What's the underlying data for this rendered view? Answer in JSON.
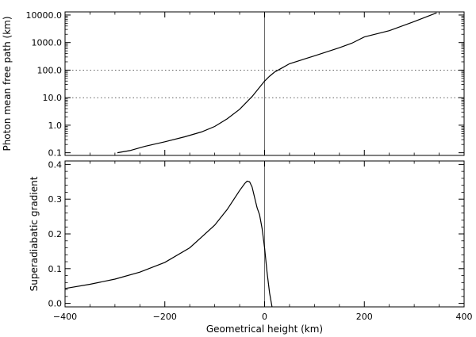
{
  "chart_data": [
    {
      "type": "line",
      "ylabel": "Photon mean free path (km)",
      "yscale": "log",
      "xlim": [
        -400,
        400
      ],
      "ylim": [
        0.08,
        13000
      ],
      "yticks": [
        0.1,
        1,
        10,
        100,
        1000,
        10000
      ],
      "ytick_labels": [
        "0.1",
        "1.0",
        "10.0",
        "100.0",
        "1000.0",
        "10000.0"
      ],
      "xticks": [
        -400,
        -200,
        0,
        200,
        400
      ],
      "hlines_dotted": [
        10,
        100
      ],
      "vline": 0,
      "x": [
        -295,
        -270,
        -240,
        -200,
        -160,
        -125,
        -100,
        -75,
        -50,
        -25,
        0,
        10,
        20,
        25,
        35,
        50,
        100,
        150,
        175,
        200,
        250,
        300,
        345
      ],
      "y": [
        0.1,
        0.12,
        0.17,
        0.25,
        0.38,
        0.58,
        0.9,
        1.7,
        3.8,
        11,
        40,
        60,
        85,
        95,
        120,
        170,
        330,
        650,
        950,
        1600,
        2700,
        5800,
        12000
      ]
    },
    {
      "type": "line",
      "ylabel": "Superadiabatic gradient",
      "xlabel": "Geometrical height (km)",
      "xlim": [
        -400,
        400
      ],
      "ylim": [
        -0.01,
        0.41
      ],
      "yticks": [
        0.0,
        0.1,
        0.2,
        0.3,
        0.4
      ],
      "ytick_labels": [
        "0.0",
        "0.1",
        "0.2",
        "0.3",
        "0.4"
      ],
      "xticks": [
        -400,
        -200,
        0,
        200,
        400
      ],
      "xtick_labels": [
        "−400",
        "−200",
        "0",
        "200",
        "400"
      ],
      "vline": 0,
      "x": [
        -400,
        -350,
        -300,
        -250,
        -200,
        -150,
        -100,
        -75,
        -50,
        -40,
        -35,
        -30,
        -25,
        -20,
        -15,
        -10,
        -5,
        0,
        5,
        10,
        15
      ],
      "y": [
        0.043,
        0.055,
        0.07,
        0.09,
        0.118,
        0.16,
        0.225,
        0.27,
        0.325,
        0.345,
        0.352,
        0.35,
        0.335,
        0.305,
        0.275,
        0.255,
        0.215,
        0.16,
        0.09,
        0.03,
        -0.01
      ]
    }
  ]
}
